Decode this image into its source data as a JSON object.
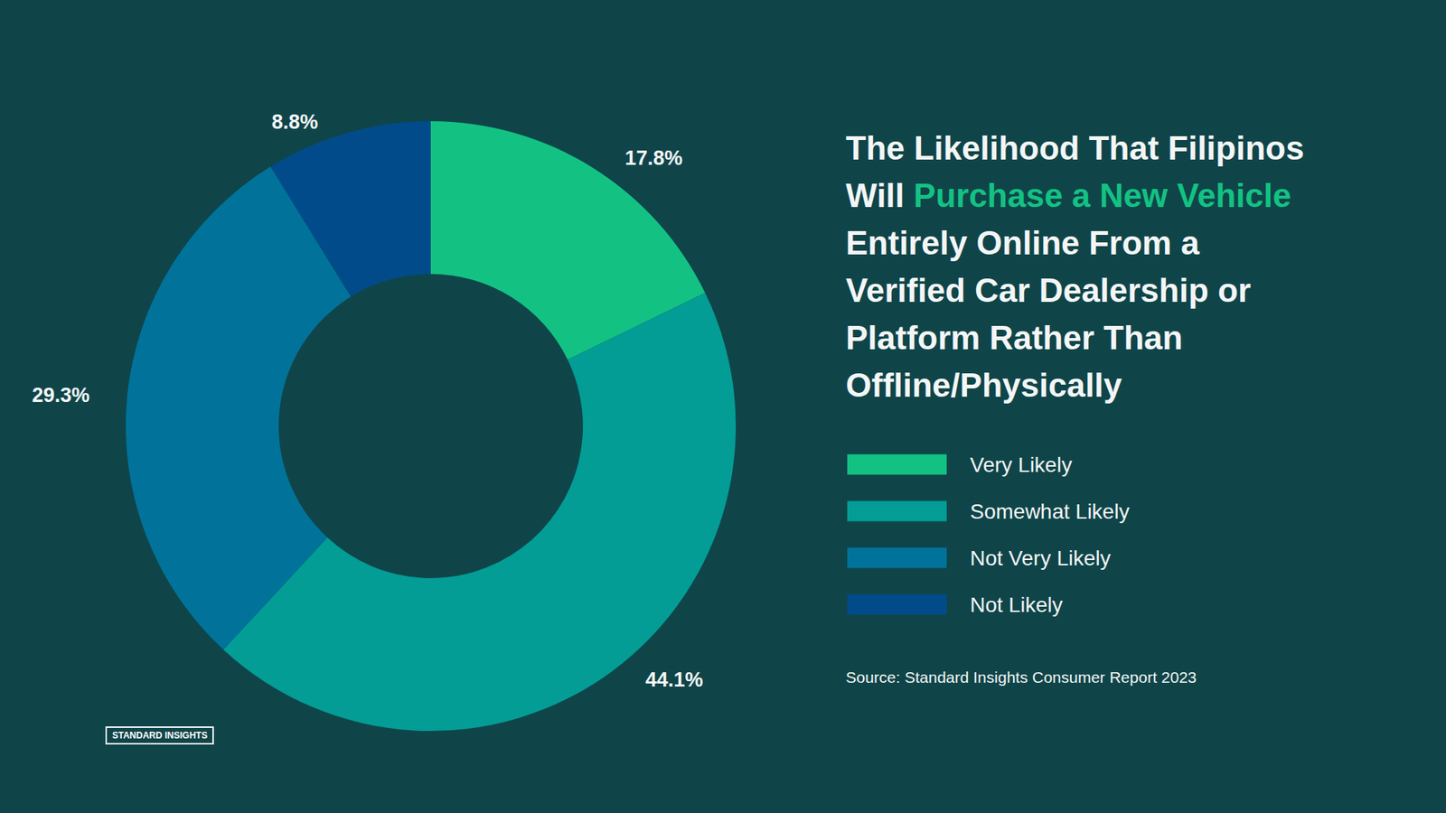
{
  "chart_data": {
    "type": "pie",
    "title": "The Likelihood That Filipinos\nWill Purchase a New Vehicle\nEntirely Online From a\nVerified Car Dealership or\nPlatform Rather Than\nOffline/Physically",
    "title_highlight": "Purchase a New Vehicle",
    "categories": [
      "Very Likely",
      "Somewhat Likely",
      "Not Very Likely",
      "Not Likely"
    ],
    "values": [
      17.8,
      44.1,
      29.3,
      8.8
    ],
    "value_labels": [
      "17.8%",
      "44.1%",
      "29.3%",
      "8.8%"
    ],
    "colors": [
      "#13c283",
      "#039d96",
      "#01739a",
      "#024b8a"
    ],
    "legend": "right",
    "data_labels": true,
    "source": "Source: Standard Insights Consumer Report 2023",
    "brand": "STANDARD INSIGHTS"
  }
}
